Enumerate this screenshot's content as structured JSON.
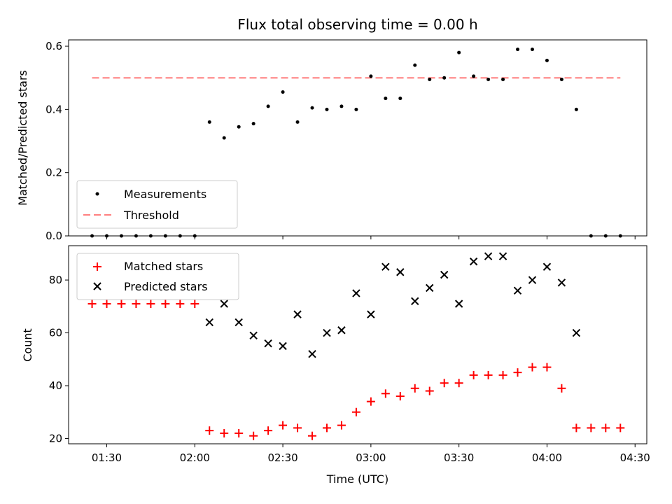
{
  "chart_data": [
    {
      "type": "scatter",
      "title": "Flux total observing time = 0.00 h",
      "xlabel": "",
      "ylabel": "Matched/Predicted stars",
      "ylim": [
        0,
        0.62
      ],
      "yticks": [
        "0.0",
        "0.2",
        "0.4",
        "0.6"
      ],
      "ytick_values": [
        0,
        0.2,
        0.4,
        0.6
      ],
      "legend_position": "lower-left",
      "colors": {
        "measurements": "#000000",
        "threshold": "#ff7f7f"
      },
      "threshold": {
        "name": "Threshold",
        "value": 0.5,
        "x_start": "01:25",
        "x_end": "04:25"
      },
      "series": [
        {
          "name": "Measurements",
          "x": [
            "01:25",
            "01:30",
            "01:35",
            "01:40",
            "01:45",
            "01:50",
            "01:55",
            "02:00",
            "02:05",
            "02:10",
            "02:15",
            "02:20",
            "02:25",
            "02:30",
            "02:35",
            "02:40",
            "02:45",
            "02:50",
            "02:55",
            "03:00",
            "03:05",
            "03:10",
            "03:15",
            "03:20",
            "03:25",
            "03:30",
            "03:35",
            "03:40",
            "03:45",
            "03:50",
            "03:55",
            "04:00",
            "04:05",
            "04:10",
            "04:15",
            "04:20",
            "04:25"
          ],
          "y": [
            0,
            0,
            0,
            0,
            0,
            0,
            0,
            0,
            0.36,
            0.31,
            0.345,
            0.355,
            0.41,
            0.455,
            0.36,
            0.405,
            0.4,
            0.41,
            0.4,
            0.505,
            0.435,
            0.435,
            0.54,
            0.495,
            0.5,
            0.58,
            0.505,
            0.495,
            0.495,
            0.59,
            0.59,
            0.555,
            0.495,
            0.4,
            0,
            0,
            0
          ]
        }
      ]
    },
    {
      "type": "scatter",
      "title": "",
      "xlabel": "Time (UTC)",
      "ylabel": "Count",
      "ylim": [
        18,
        93
      ],
      "xlim": [
        "01:17",
        "04:34"
      ],
      "xticks": [
        "01:30",
        "02:00",
        "02:30",
        "03:00",
        "03:30",
        "04:00",
        "04:30"
      ],
      "yticks": [
        "20",
        "40",
        "60",
        "80"
      ],
      "ytick_values": [
        20,
        40,
        60,
        80
      ],
      "legend_position": "upper-left",
      "colors": {
        "matched": "#ff0000",
        "predicted": "#000000"
      },
      "series": [
        {
          "name": "Matched stars",
          "marker": "plus",
          "x": [
            "01:25",
            "01:30",
            "01:35",
            "01:40",
            "01:45",
            "01:50",
            "01:55",
            "02:00",
            "02:05",
            "02:10",
            "02:15",
            "02:20",
            "02:25",
            "02:30",
            "02:35",
            "02:40",
            "02:45",
            "02:50",
            "02:55",
            "03:00",
            "03:05",
            "03:10",
            "03:15",
            "03:20",
            "03:25",
            "03:30",
            "03:35",
            "03:40",
            "03:45",
            "03:50",
            "03:55",
            "04:00",
            "04:05",
            "04:10",
            "04:15",
            "04:20",
            "04:25"
          ],
          "y": [
            71,
            71,
            71,
            71,
            71,
            71,
            71,
            71,
            23,
            22,
            22,
            21,
            23,
            25,
            24,
            21,
            24,
            25,
            30,
            34,
            37,
            36,
            39,
            38,
            41,
            41,
            44,
            44,
            44,
            45,
            47,
            47,
            39,
            24,
            24,
            24,
            24
          ]
        },
        {
          "name": "Predicted stars",
          "marker": "x",
          "x": [
            "02:05",
            "02:10",
            "02:15",
            "02:20",
            "02:25",
            "02:30",
            "02:35",
            "02:40",
            "02:45",
            "02:50",
            "02:55",
            "03:00",
            "03:05",
            "03:10",
            "03:15",
            "03:20",
            "03:25",
            "03:30",
            "03:35",
            "03:40",
            "03:45",
            "03:50",
            "03:55",
            "04:00",
            "04:05",
            "04:10"
          ],
          "y": [
            64,
            71,
            64,
            59,
            56,
            55,
            67,
            52,
            60,
            61,
            75,
            67,
            85,
            83,
            72,
            77,
            82,
            71,
            87,
            89,
            89,
            76,
            80,
            85,
            79,
            60
          ]
        }
      ]
    }
  ]
}
